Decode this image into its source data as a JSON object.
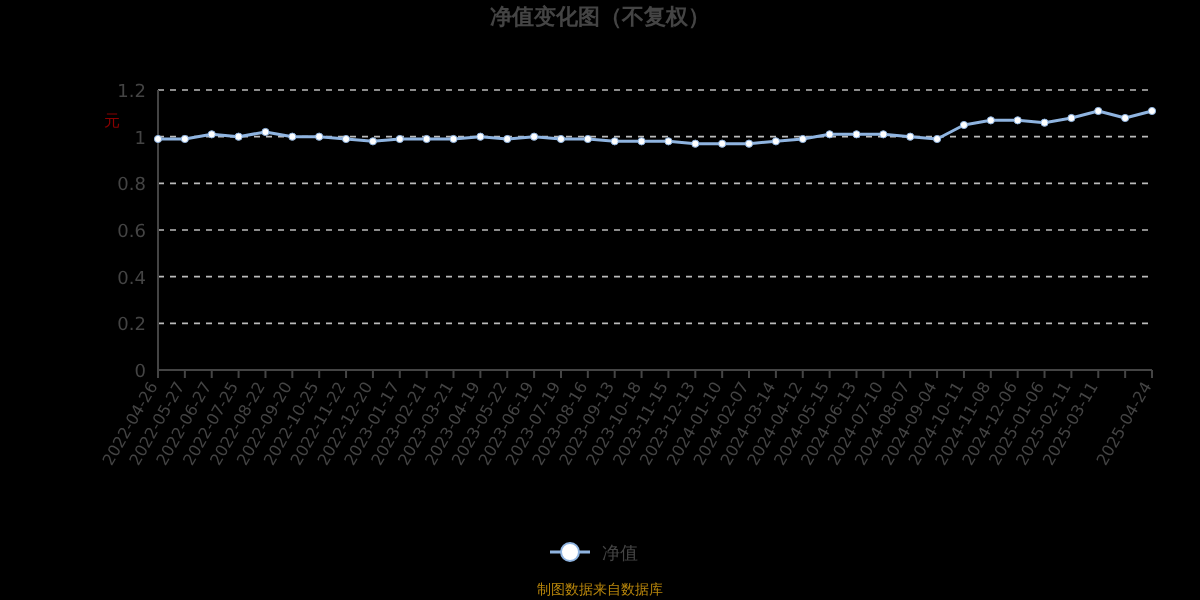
{
  "chart_data": {
    "type": "line",
    "title": "净值变化图（不复权）",
    "ylabel": "元",
    "categories": [
      "2022-04-26",
      "2022-05-27",
      "2022-06-27",
      "2022-07-25",
      "2022-08-22",
      "2022-09-20",
      "2022-10-25",
      "2022-11-22",
      "2022-12-20",
      "2023-01-17",
      "2023-02-21",
      "2023-03-21",
      "2023-04-19",
      "2023-05-22",
      "2023-06-19",
      "2023-07-19",
      "2023-08-16",
      "2023-09-13",
      "2023-10-18",
      "2023-11-15",
      "2023-12-13",
      "2024-01-10",
      "2024-02-07",
      "2024-03-14",
      "2024-04-12",
      "2024-05-15",
      "2024-06-13",
      "2024-07-10",
      "2024-08-07",
      "2024-09-04",
      "2024-10-11",
      "2024-11-08",
      "2024-12-06",
      "2025-01-06",
      "2025-02-11",
      "2025-03-11",
      null,
      "2025-04-24"
    ],
    "series": [
      {
        "name": "净值",
        "color": "#8fb4e0",
        "values": [
          0.99,
          0.99,
          1.01,
          1.0,
          1.02,
          1.0,
          1.0,
          0.99,
          0.98,
          0.99,
          0.99,
          0.99,
          1.0,
          0.99,
          1.0,
          0.99,
          0.99,
          0.98,
          0.98,
          0.98,
          0.97,
          0.97,
          0.97,
          0.98,
          0.99,
          1.01,
          1.01,
          1.01,
          1.0,
          0.99,
          1.05,
          1.07,
          1.07,
          1.06,
          1.08,
          1.11,
          1.08,
          1.11
        ]
      }
    ],
    "ylim": [
      0,
      1.2
    ],
    "yticks": [
      0,
      0.2,
      0.4,
      0.6,
      0.8,
      1,
      1.2
    ],
    "grid": "y",
    "legend": "bottom",
    "marker": "circle",
    "annotations": [
      "制图数据来自数据库"
    ]
  }
}
